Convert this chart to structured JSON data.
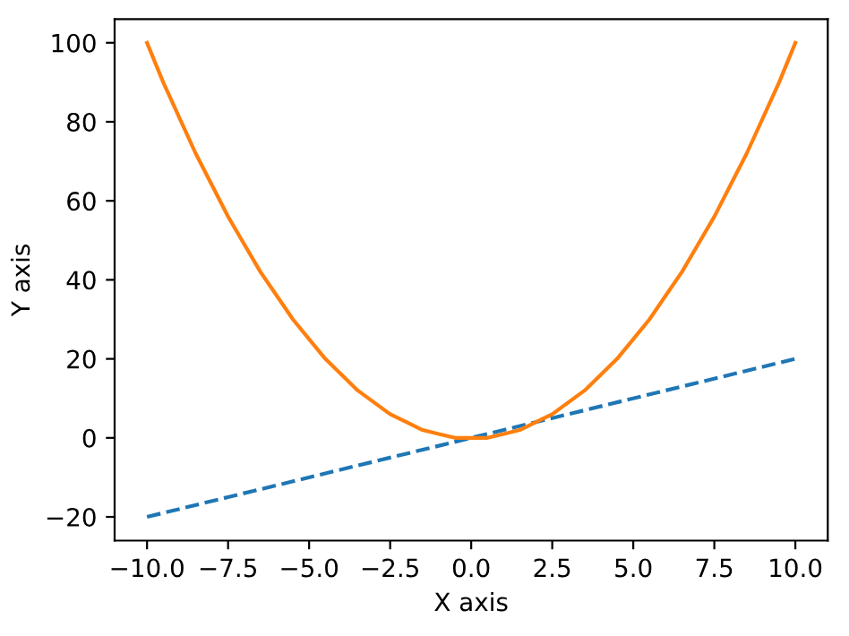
{
  "chart_data": {
    "type": "line",
    "xlabel": "X axis",
    "ylabel": "Y axis",
    "series": [
      {
        "color": "#1f77b4",
        "line_style": "dashed",
        "x": [
          -10,
          0,
          10
        ],
        "values": [
          -20,
          0,
          20
        ]
      },
      {
        "color": "#ff7f0e",
        "line_style": "solid",
        "x": [
          -10,
          -9.5,
          -9,
          -8.5,
          -8,
          -7.5,
          -7,
          -6.5,
          -6,
          -5.5,
          -5,
          -4.5,
          -4,
          -3.5,
          -3,
          -2.5,
          -2,
          -1.5,
          -1,
          -0.5,
          0,
          0.5,
          1,
          1.5,
          2,
          2.5,
          3,
          3.5,
          4,
          4.5,
          5,
          5.5,
          6,
          6.5,
          7,
          7.5,
          8,
          8.5,
          9,
          9.5,
          10
        ],
        "values": [
          100,
          90,
          81,
          72,
          64,
          56,
          49,
          42,
          36,
          30,
          25,
          20,
          16,
          12,
          9,
          6,
          4,
          2,
          1,
          0,
          0,
          0,
          1,
          2,
          4,
          6,
          9,
          12,
          16,
          20,
          25,
          30,
          36,
          42,
          49,
          56,
          64,
          72,
          81,
          90,
          100
        ]
      }
    ],
    "xlim": [
      -11,
      11
    ],
    "ylim": [
      -26,
      106
    ],
    "xticks": [
      {
        "value": -10,
        "label": "−10.0"
      },
      {
        "value": -7.5,
        "label": "−7.5"
      },
      {
        "value": -5,
        "label": "−5.0"
      },
      {
        "value": -2.5,
        "label": "−2.5"
      },
      {
        "value": 0,
        "label": "0.0"
      },
      {
        "value": 2.5,
        "label": "2.5"
      },
      {
        "value": 5,
        "label": "5.0"
      },
      {
        "value": 7.5,
        "label": "7.5"
      },
      {
        "value": 10,
        "label": "10.0"
      }
    ],
    "yticks": [
      {
        "value": -20,
        "label": "−20"
      },
      0,
      20,
      40,
      60,
      80,
      100
    ],
    "grid": false,
    "marker": "none"
  }
}
